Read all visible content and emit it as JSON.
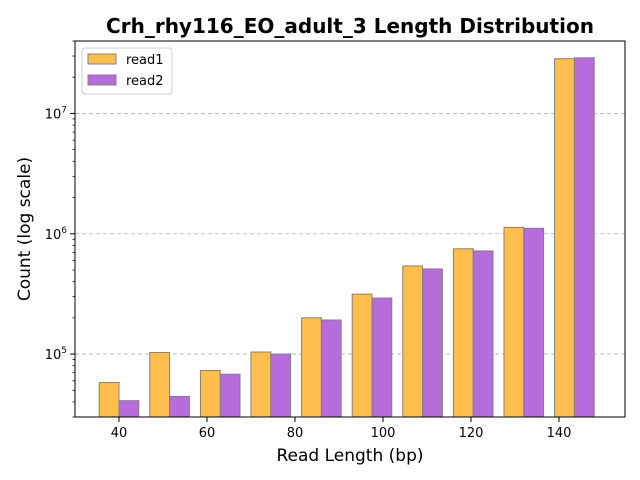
{
  "chart_data": {
    "type": "bar",
    "title": "Crh_rhy116_EO_adult_3 Length Distribution",
    "xlabel": "Read Length (bp)",
    "ylabel": "Count (log scale)",
    "y_scale": "log",
    "xlim": [
      30,
      155
    ],
    "ylim": [
      30000,
      40000000
    ],
    "x_ticks": [
      40,
      60,
      80,
      100,
      120,
      140
    ],
    "y_ticks": [
      {
        "value": 100000,
        "base": "10",
        "exp": "5"
      },
      {
        "value": 1000000,
        "base": "10",
        "exp": "6"
      },
      {
        "value": 10000000,
        "base": "10",
        "exp": "7"
      }
    ],
    "grid": "y-major-dashed",
    "legend_position": "top-left",
    "bar_width": 4.5,
    "x": [
      40,
      51.5,
      63,
      74.5,
      86,
      97.5,
      109,
      120.5,
      132,
      143.5
    ],
    "series": [
      {
        "name": "read1",
        "color": "#ffbe4d",
        "offset": -2.25,
        "values": [
          58000,
          103000,
          73000,
          104000,
          200000,
          315000,
          540000,
          750000,
          1130000,
          28500000
        ]
      },
      {
        "name": "read2",
        "color": "#b66ddc",
        "offset": 2.25,
        "values": [
          41000,
          44500,
          68000,
          100000,
          192000,
          292000,
          510000,
          720000,
          1110000,
          29000000
        ]
      }
    ],
    "edge_color": "#808080"
  }
}
